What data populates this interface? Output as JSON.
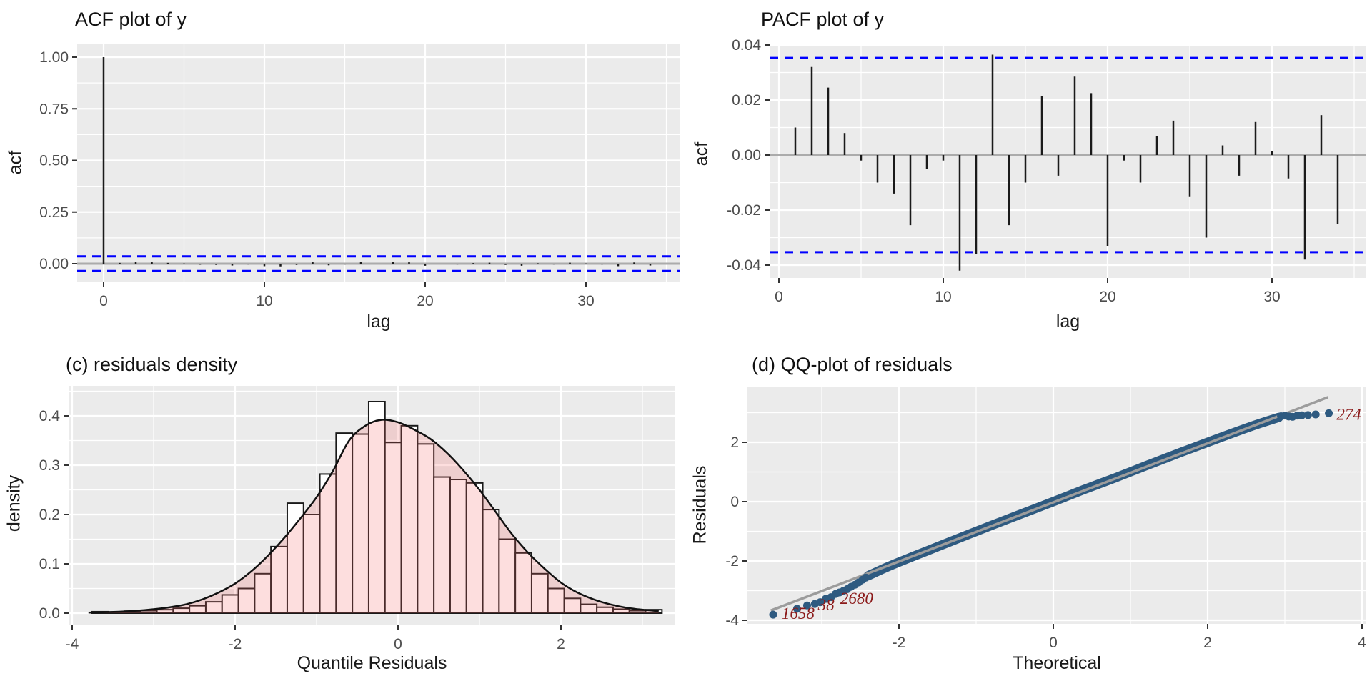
{
  "colors": {
    "page_bg": "#FFFFFF",
    "panel_bg": "#EBEBEB",
    "grid": "#FFFFFF",
    "bar": "#1a1a1a",
    "zero_line": "#ABABAB",
    "conf_line": "#0000FF",
    "tick_mark": "#333333",
    "tick_label": "#4D4D4D",
    "hist_fill": "#FFFFFF",
    "hist_stroke": "#1a1a1a",
    "density_fill": "rgba(248,105,105,0.22)",
    "density_stroke": "#111111",
    "qq_point": "#2E5A80",
    "qq_ref_line": "#9C9C9C",
    "outlier_label": "#8B1A1A"
  },
  "chart_data": [
    {
      "id": "acf",
      "type": "bar",
      "title": "ACF plot of y",
      "xlabel": "lag",
      "ylabel": "acf",
      "lag_start": 0,
      "x_ticks": [
        {
          "v": 0,
          "label": "0"
        },
        {
          "v": 10,
          "label": "10"
        },
        {
          "v": 20,
          "label": "20"
        },
        {
          "v": 30,
          "label": "30"
        }
      ],
      "y_ticks": [
        {
          "v": 0,
          "label": "0.00"
        },
        {
          "v": 0.25,
          "label": "0.25"
        },
        {
          "v": 0.5,
          "label": "0.50"
        },
        {
          "v": 0.75,
          "label": "0.75"
        },
        {
          "v": 1,
          "label": "1.00"
        }
      ],
      "conf_band": 0.0355,
      "values": [
        1.0,
        0.004,
        0.01,
        0.009,
        0.004,
        0.001,
        -0.005,
        -0.006,
        -0.009,
        -0.004,
        -0.012,
        -0.013,
        -0.006,
        0.01,
        -0.008,
        -0.004,
        0.008,
        -0.003,
        0.009,
        0.008,
        -0.01,
        -0.003,
        -0.004,
        0.003,
        0.005,
        -0.006,
        -0.01,
        0.002,
        -0.004,
        0.005,
        0.001,
        -0.004,
        -0.012,
        0.006,
        -0.009,
        -0.003
      ]
    },
    {
      "id": "pacf",
      "type": "bar",
      "title": "PACF plot of y",
      "xlabel": "lag",
      "ylabel": "acf",
      "lag_start": 1,
      "x_ticks": [
        {
          "v": 0,
          "label": "0"
        },
        {
          "v": 10,
          "label": "10"
        },
        {
          "v": 20,
          "label": "20"
        },
        {
          "v": 30,
          "label": "30"
        }
      ],
      "y_ticks": [
        {
          "v": -0.04,
          "label": "-0.04"
        },
        {
          "v": -0.02,
          "label": "-0.02"
        },
        {
          "v": 0,
          "label": "0.00"
        },
        {
          "v": 0.02,
          "label": "0.02"
        },
        {
          "v": 0.04,
          "label": "0.04"
        }
      ],
      "conf_band": 0.0353,
      "values": [
        0.01,
        0.032,
        0.0245,
        0.008,
        -0.002,
        -0.01,
        -0.014,
        -0.0255,
        -0.005,
        -0.002,
        -0.042,
        -0.036,
        0.0365,
        -0.0255,
        -0.01,
        0.0215,
        -0.0075,
        0.0285,
        0.0225,
        -0.033,
        -0.002,
        -0.01,
        0.007,
        0.0125,
        -0.015,
        -0.03,
        0.0035,
        -0.0075,
        0.012,
        0.0015,
        -0.0085,
        -0.038,
        0.0145,
        -0.025
      ]
    },
    {
      "id": "density",
      "type": "area",
      "title": "(c) residuals density",
      "xlabel": "Quantile Residuals",
      "ylabel": "density",
      "x_ticks": [
        {
          "v": -4,
          "label": "-4"
        },
        {
          "v": -2,
          "label": "-2"
        },
        {
          "v": 0,
          "label": "0"
        },
        {
          "v": 2,
          "label": "2"
        }
      ],
      "y_ticks": [
        {
          "v": 0,
          "label": "0.0"
        },
        {
          "v": 0.1,
          "label": "0.1"
        },
        {
          "v": 0.2,
          "label": "0.2"
        },
        {
          "v": 0.3,
          "label": "0.3"
        },
        {
          "v": 0.4,
          "label": "0.4"
        }
      ],
      "bin_start": -3.76,
      "bin_width": 0.2,
      "bar_heights": [
        0.003,
        0.002,
        0.004,
        0.005,
        0.007,
        0.01,
        0.015,
        0.023,
        0.037,
        0.05,
        0.08,
        0.135,
        0.223,
        0.2,
        0.282,
        0.365,
        0.363,
        0.429,
        0.346,
        0.38,
        0.343,
        0.276,
        0.271,
        0.264,
        0.21,
        0.15,
        0.122,
        0.08,
        0.05,
        0.03,
        0.018,
        0.012,
        0.008,
        0.005,
        0.007
      ],
      "curve_x": [
        -3.8,
        -3.6,
        -3.4,
        -3.2,
        -3.0,
        -2.8,
        -2.6,
        -2.4,
        -2.2,
        -2.0,
        -1.8,
        -1.6,
        -1.4,
        -1.2,
        -1.0,
        -0.8,
        -0.6,
        -0.4,
        -0.2,
        0.0,
        0.2,
        0.4,
        0.6,
        0.8,
        1.0,
        1.2,
        1.4,
        1.6,
        1.8,
        2.0,
        2.2,
        2.4,
        2.6,
        2.8,
        3.0,
        3.2
      ],
      "curve_y": [
        0.001,
        0.002,
        0.003,
        0.005,
        0.008,
        0.012,
        0.018,
        0.028,
        0.042,
        0.06,
        0.085,
        0.116,
        0.152,
        0.192,
        0.235,
        0.288,
        0.35,
        0.38,
        0.392,
        0.387,
        0.372,
        0.353,
        0.325,
        0.29,
        0.25,
        0.205,
        0.16,
        0.122,
        0.09,
        0.062,
        0.042,
        0.028,
        0.018,
        0.011,
        0.007,
        0.004
      ]
    },
    {
      "id": "qq",
      "type": "scatter",
      "title": "(d) QQ-plot of residuals",
      "xlabel": "Theoretical",
      "ylabel": "Residuals",
      "x_ticks": [
        {
          "v": -2,
          "label": "-2"
        },
        {
          "v": 0,
          "label": "0"
        },
        {
          "v": 2,
          "label": "2"
        },
        {
          "v": 4,
          "label": "4"
        }
      ],
      "y_ticks": [
        {
          "v": -4,
          "label": "-4"
        },
        {
          "v": -2,
          "label": "-2"
        },
        {
          "v": 0,
          "label": "0"
        },
        {
          "v": 2,
          "label": "2"
        }
      ],
      "ref_line": {
        "x1": -3.66,
        "y1": -3.67,
        "x2": 3.56,
        "y2": 3.52
      },
      "band": [
        [
          -2.4,
          -2.5
        ],
        [
          -2.2,
          -2.26
        ],
        [
          -2.0,
          -2.04
        ],
        [
          -1.8,
          -1.83
        ],
        [
          -1.5,
          -1.52
        ],
        [
          -1.2,
          -1.21
        ],
        [
          -0.8,
          -0.8
        ],
        [
          -0.4,
          -0.4
        ],
        [
          0.0,
          0.0
        ],
        [
          0.4,
          0.41
        ],
        [
          0.8,
          0.8
        ],
        [
          1.2,
          1.21
        ],
        [
          1.6,
          1.61
        ],
        [
          2.0,
          2.0
        ],
        [
          2.3,
          2.29
        ],
        [
          2.6,
          2.57
        ],
        [
          2.8,
          2.74
        ],
        [
          2.92,
          2.84
        ]
      ],
      "lower_points": [
        [
          -3.63,
          -3.81
        ],
        [
          -3.32,
          -3.61
        ],
        [
          -3.19,
          -3.5
        ],
        [
          -3.09,
          -3.45
        ],
        [
          -3.02,
          -3.39
        ],
        [
          -2.95,
          -3.28
        ],
        [
          -2.88,
          -3.22
        ],
        [
          -2.82,
          -3.11
        ],
        [
          -2.77,
          -3.06
        ],
        [
          -2.72,
          -3.01
        ],
        [
          -2.67,
          -2.95
        ],
        [
          -2.62,
          -2.87
        ],
        [
          -2.57,
          -2.8
        ],
        [
          -2.52,
          -2.72
        ],
        [
          -2.47,
          -2.63
        ],
        [
          -2.43,
          -2.56
        ]
      ],
      "upper_points": [
        [
          2.95,
          2.88
        ],
        [
          3.0,
          2.9
        ],
        [
          3.05,
          2.87
        ],
        [
          3.1,
          2.86
        ],
        [
          3.16,
          2.9
        ],
        [
          3.22,
          2.91
        ],
        [
          3.3,
          2.92
        ],
        [
          3.4,
          2.94
        ],
        [
          3.57,
          2.98
        ]
      ],
      "outlier_labels": [
        {
          "text": "1658",
          "x": -3.52,
          "y": -3.95
        },
        {
          "text": "38",
          "x": -3.05,
          "y": -3.66
        },
        {
          "text": "2680",
          "x": -2.76,
          "y": -3.45
        },
        {
          "text": "274",
          "x": 3.67,
          "y": 2.76
        }
      ]
    }
  ]
}
